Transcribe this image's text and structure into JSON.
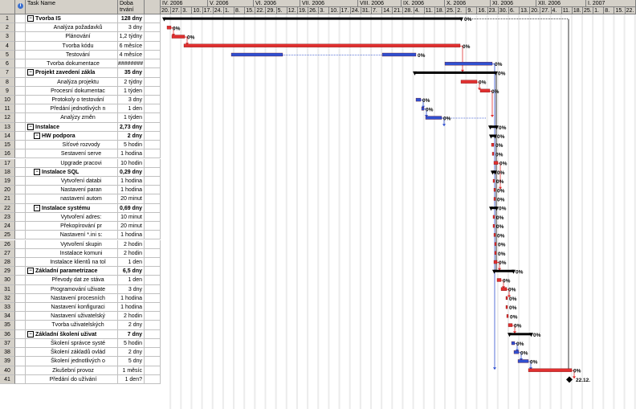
{
  "headers": {
    "id": "",
    "name": "Task Name",
    "duration_line1": "Doba",
    "duration_line2": "trvání",
    "info_icon": "info-icon"
  },
  "timeline": {
    "months": [
      {
        "label": "IV. 2006",
        "weeks": [
          "2.",
          "9.",
          "16.",
          "23.",
          "30."
        ]
      },
      {
        "label": "V. 2006",
        "weeks": [
          "7.",
          "14.",
          "21.",
          "28."
        ]
      },
      {
        "label": "VI. 2006",
        "weeks": [
          "4.",
          "11.",
          "18.",
          "25."
        ]
      },
      {
        "label": "VII. 2006",
        "weeks": [
          "2.",
          "9.",
          "16.",
          "23.",
          "30."
        ]
      },
      {
        "label": "VIII. 2006",
        "weeks": [
          "6.",
          "13.",
          "20.",
          "27."
        ]
      },
      {
        "label": "IX. 2006",
        "weeks": [
          "3.",
          "10.",
          "17.",
          "24."
        ]
      },
      {
        "label": "X. 2006",
        "weeks": [
          "1.",
          "8.",
          "15.",
          "22.",
          "29."
        ]
      },
      {
        "label": "XI. 2006",
        "weeks": [
          "5.",
          "12.",
          "19.",
          "26."
        ]
      },
      {
        "label": "XII. 2006",
        "weeks": [
          "3.",
          "10.",
          "17.",
          "24.",
          "31."
        ]
      },
      {
        "label": "I. 2007",
        "weeks": [
          "7.",
          "14."
        ]
      }
    ],
    "visible_weeks": [
      "20.",
      "27.",
      "3.",
      "10.",
      "17.",
      "24.",
      "1.",
      "8.",
      "15.",
      "22.",
      "29.",
      "5.",
      "12.",
      "19.",
      "26.",
      "3.",
      "10.",
      "17.",
      "24.",
      "31.",
      "7.",
      "14.",
      "21.",
      "28.",
      "4.",
      "11.",
      "18.",
      "25.",
      "2.",
      "9.",
      "16.",
      "23.",
      "30.",
      "6.",
      "13.",
      "20.",
      "27.",
      "4.",
      "11.",
      "18.",
      "25.",
      "1.",
      "8.",
      "15.",
      "22."
    ],
    "month_labels": [
      "IV. 2006",
      "V. 2006",
      "VI. 2006",
      "VII. 2006",
      "VIII. 2006",
      "IX. 2006",
      "X. 2006",
      "XI. 2006",
      "XII. 2006",
      "I. 2007"
    ]
  },
  "tasks": [
    {
      "id": "1",
      "name": "Tvorba IS",
      "dur": "128 dny",
      "level": 0,
      "summary": true
    },
    {
      "id": "2",
      "name": "Analýza požadavků",
      "dur": "3 dny",
      "level": 2
    },
    {
      "id": "3",
      "name": "Plánování",
      "dur": "1,2 týdny",
      "level": 2
    },
    {
      "id": "4",
      "name": "Tvorba kódu",
      "dur": "6 měsíce",
      "level": 2
    },
    {
      "id": "5",
      "name": "Testování",
      "dur": "4 měsíce",
      "level": 2
    },
    {
      "id": "6",
      "name": "Tvorba dokumentace",
      "dur": "########",
      "level": 1
    },
    {
      "id": "7",
      "name": "Projekt zavedení zákla",
      "dur": "35 dny",
      "level": 0,
      "summary": true
    },
    {
      "id": "8",
      "name": "Analýza projektu",
      "dur": "2 týdny",
      "level": 2
    },
    {
      "id": "9",
      "name": "Procesní dokumentac",
      "dur": "1 týden",
      "level": 2
    },
    {
      "id": "10",
      "name": "Protokoly o testování",
      "dur": "3 dny",
      "level": 2
    },
    {
      "id": "11",
      "name": "Předání jednotlivých n",
      "dur": "1 den",
      "level": 2
    },
    {
      "id": "12",
      "name": "Analýzy změn",
      "dur": "1 týden",
      "level": 2
    },
    {
      "id": "13",
      "name": "Instalace",
      "dur": "2,73 dny",
      "level": 0,
      "summary": true
    },
    {
      "id": "14",
      "name": "HW podpora",
      "dur": "2 dny",
      "level": 1,
      "summary": true
    },
    {
      "id": "15",
      "name": "Síťové rozvody",
      "dur": "5 hodin",
      "level": 3
    },
    {
      "id": "16",
      "name": "Sestavení serve",
      "dur": "1 hodina",
      "level": 3
    },
    {
      "id": "17",
      "name": "Upgrade pracovi",
      "dur": "10 hodin",
      "level": 3
    },
    {
      "id": "18",
      "name": "Instalace SQL",
      "dur": "0,29 dny",
      "level": 1,
      "summary": true
    },
    {
      "id": "19",
      "name": "Vytvoření databi",
      "dur": "1 hodina",
      "level": 3
    },
    {
      "id": "20",
      "name": "Nastavení paran",
      "dur": "1 hodina",
      "level": 3
    },
    {
      "id": "21",
      "name": "nastavení autom",
      "dur": "20 minut",
      "level": 3
    },
    {
      "id": "22",
      "name": "Instalace systému",
      "dur": "0,69 dny",
      "level": 1,
      "summary": true
    },
    {
      "id": "23",
      "name": "Vytvoření adres:",
      "dur": "10 minut",
      "level": 3
    },
    {
      "id": "24",
      "name": "Překopírování pr",
      "dur": "20 minut",
      "level": 3
    },
    {
      "id": "25",
      "name": "Nastavení *.ini s:",
      "dur": "1 hodina",
      "level": 3
    },
    {
      "id": "26",
      "name": "Vytvoření skupin",
      "dur": "2 hodin",
      "level": 3
    },
    {
      "id": "27",
      "name": "Instalace komuni",
      "dur": "2 hodin",
      "level": 3
    },
    {
      "id": "28",
      "name": "Instalace klientů na tol",
      "dur": "1 den",
      "level": 2
    },
    {
      "id": "29",
      "name": "Základní parametrizace",
      "dur": "6,5 dny",
      "level": 0,
      "summary": true
    },
    {
      "id": "30",
      "name": "Převody dat ze stáva",
      "dur": "1 den",
      "level": 2
    },
    {
      "id": "31",
      "name": "Programování uživate",
      "dur": "3 dny",
      "level": 2
    },
    {
      "id": "32",
      "name": "Nastavení procesních",
      "dur": "1 hodina",
      "level": 2
    },
    {
      "id": "33",
      "name": "Nastavení konfiguraci",
      "dur": "1 hodina",
      "level": 2
    },
    {
      "id": "34",
      "name": "Nastavení uživatelský",
      "dur": "2 hodin",
      "level": 2
    },
    {
      "id": "35",
      "name": "Tvorba uživatelských",
      "dur": "2 dny",
      "level": 2
    },
    {
      "id": "36",
      "name": "Základní školení uživat",
      "dur": "7 dny",
      "level": 0,
      "summary": true
    },
    {
      "id": "37",
      "name": "Školení správce systé",
      "dur": "5 hodin",
      "level": 2
    },
    {
      "id": "38",
      "name": "Školení základů ovlád",
      "dur": "2 dny",
      "level": 2
    },
    {
      "id": "39",
      "name": "Školení jednotlivých o",
      "dur": "5 dny",
      "level": 2
    },
    {
      "id": "40",
      "name": "Zkušební provoz",
      "dur": "1 měsíc",
      "level": 1
    },
    {
      "id": "41",
      "name": "Předání do užívání",
      "dur": "1 den?",
      "level": 1
    }
  ],
  "bar_labels": {
    "pct": "0%",
    "milestone_date": "22.12."
  },
  "colors": {
    "critical": "#e03030",
    "normal": "#3050d0",
    "summary": "#000000",
    "grid": "#c0c0c0",
    "header": "#d4d0c8"
  }
}
